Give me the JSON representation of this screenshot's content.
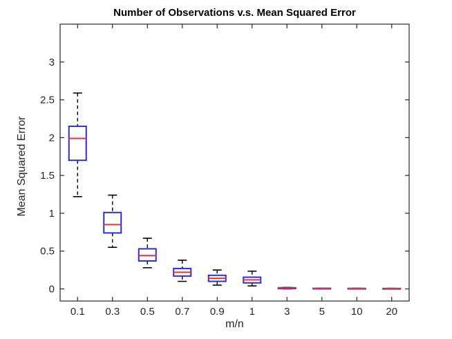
{
  "figure": {
    "background": "#ffffff"
  },
  "chart_data": {
    "type": "boxplot",
    "title": "Number of Observations v.s. Mean Squared Error",
    "xlabel": "m/n",
    "ylabel": "Mean Squared Error",
    "categories": [
      "0.1",
      "0.3",
      "0.5",
      "0.7",
      "0.9",
      "1",
      "3",
      "5",
      "10",
      "20"
    ],
    "yticks": [
      0,
      0.5,
      1,
      1.5,
      2,
      2.5,
      3
    ],
    "ytick_labels": [
      "0",
      "0.5",
      "1",
      "1.5",
      "2",
      "2.5",
      "3"
    ],
    "ylim": [
      -0.16,
      3.5
    ],
    "grid": false,
    "legend": "none",
    "series": [
      {
        "x": "0.1",
        "whislo": 1.22,
        "q1": 1.7,
        "med": 1.99,
        "q3": 2.15,
        "whishi": 2.59
      },
      {
        "x": "0.3",
        "whislo": 0.55,
        "q1": 0.74,
        "med": 0.85,
        "q3": 1.01,
        "whishi": 1.24
      },
      {
        "x": "0.5",
        "whislo": 0.28,
        "q1": 0.37,
        "med": 0.44,
        "q3": 0.53,
        "whishi": 0.67
      },
      {
        "x": "0.7",
        "whislo": 0.1,
        "q1": 0.17,
        "med": 0.22,
        "q3": 0.27,
        "whishi": 0.38
      },
      {
        "x": "0.9",
        "whislo": 0.05,
        "q1": 0.1,
        "med": 0.14,
        "q3": 0.18,
        "whishi": 0.25
      },
      {
        "x": "1",
        "whislo": 0.04,
        "q1": 0.08,
        "med": 0.12,
        "q3": 0.155,
        "whishi": 0.235
      },
      {
        "x": "3",
        "whislo": 0.0,
        "q1": 0.004,
        "med": 0.01,
        "q3": 0.016,
        "whishi": 0.02
      },
      {
        "x": "5",
        "whislo": 0.0,
        "q1": 0.002,
        "med": 0.005,
        "q3": 0.008,
        "whishi": 0.01
      },
      {
        "x": "10",
        "whislo": 0.0,
        "q1": 0.002,
        "med": 0.004,
        "q3": 0.007,
        "whishi": 0.009
      },
      {
        "x": "20",
        "whislo": 0.0,
        "q1": 0.001,
        "med": 0.003,
        "q3": 0.006,
        "whishi": 0.008
      }
    ],
    "colors": {
      "box": "#2b2be0",
      "median": "#ee3030",
      "whisker": "#000000",
      "axis": "#262626",
      "title": "#000000"
    }
  }
}
